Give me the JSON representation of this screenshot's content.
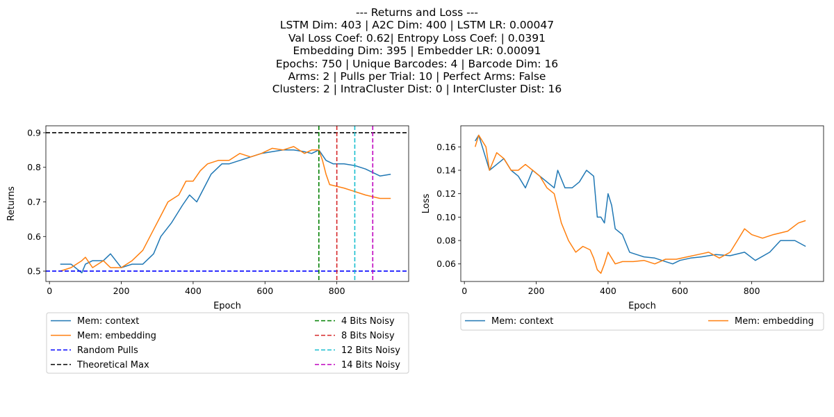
{
  "title_lines": [
    "--- Returns and Loss ---",
    "LSTM Dim: 403 | A2C Dim: 400 | LSTM LR: 0.00047",
    "Val Loss Coef: 0.62| Entropy Loss Coef: | 0.0391",
    "Embedding Dim: 395 | Embedder LR: 0.00091",
    "Epochs: 750 | Unique Barcodes: 4 | Barcode Dim: 16",
    "Arms: 2 | Pulls per Trial: 10 | Perfect Arms: False",
    "Clusters: 2 | IntraCluster Dist: 0 | InterCluster Dist: 16"
  ],
  "colors": {
    "context": "#1f77b4",
    "embedding": "#ff7f0e",
    "random": "#0000ff",
    "theoretical": "#000000",
    "bits4": "#008000",
    "bits8": "#d62728",
    "bits12": "#17becf",
    "bits14": "#bf00bf"
  },
  "chart_data": [
    {
      "type": "line",
      "xlabel": "Epoch",
      "ylabel": "Returns",
      "xlim": [
        -10,
        1000
      ],
      "ylim": [
        0.47,
        0.92
      ],
      "xticks": [
        0,
        200,
        400,
        600,
        800
      ],
      "yticks": [
        0.5,
        0.6,
        0.7,
        0.8,
        0.9
      ],
      "ytick_labels": [
        "0.5",
        "0.6",
        "0.7",
        "0.8",
        "0.9"
      ],
      "series": [
        {
          "name": "Mem: context",
          "style": "solid",
          "color_key": "context",
          "x": [
            30,
            60,
            90,
            100,
            120,
            150,
            170,
            200,
            230,
            260,
            290,
            310,
            340,
            370,
            390,
            410,
            430,
            450,
            480,
            500,
            530,
            560,
            590,
            620,
            650,
            680,
            710,
            730,
            750,
            770,
            790,
            820,
            850,
            880,
            920,
            950
          ],
          "y": [
            0.52,
            0.52,
            0.495,
            0.52,
            0.53,
            0.53,
            0.55,
            0.51,
            0.52,
            0.52,
            0.55,
            0.6,
            0.64,
            0.69,
            0.72,
            0.7,
            0.74,
            0.78,
            0.81,
            0.81,
            0.82,
            0.83,
            0.84,
            0.845,
            0.85,
            0.85,
            0.845,
            0.84,
            0.85,
            0.82,
            0.81,
            0.81,
            0.805,
            0.795,
            0.775,
            0.78
          ]
        },
        {
          "name": "Mem: embedding",
          "style": "solid",
          "color_key": "embedding",
          "x": [
            30,
            60,
            90,
            100,
            120,
            150,
            170,
            200,
            230,
            260,
            290,
            310,
            330,
            360,
            380,
            400,
            420,
            440,
            470,
            500,
            530,
            560,
            590,
            620,
            650,
            680,
            710,
            730,
            750,
            760,
            770,
            780,
            800,
            820,
            850,
            880,
            920,
            950
          ],
          "y": [
            0.5,
            0.51,
            0.53,
            0.54,
            0.51,
            0.53,
            0.51,
            0.51,
            0.53,
            0.56,
            0.62,
            0.66,
            0.7,
            0.72,
            0.76,
            0.76,
            0.79,
            0.81,
            0.82,
            0.82,
            0.84,
            0.83,
            0.84,
            0.855,
            0.85,
            0.86,
            0.84,
            0.85,
            0.85,
            0.82,
            0.78,
            0.75,
            0.745,
            0.74,
            0.73,
            0.72,
            0.71,
            0.71
          ]
        },
        {
          "name": "Random Pulls",
          "style": "dashed",
          "color_key": "random",
          "hline": 0.5
        },
        {
          "name": "Theoretical Max",
          "style": "dashed",
          "color_key": "theoretical",
          "hline": 0.9
        },
        {
          "name": "4 Bits Noisy",
          "style": "dashed",
          "color_key": "bits4",
          "vline": 750
        },
        {
          "name": "8 Bits Noisy",
          "style": "dashed",
          "color_key": "bits8",
          "vline": 800
        },
        {
          "name": "12 Bits Noisy",
          "style": "dashed",
          "color_key": "bits12",
          "vline": 850
        },
        {
          "name": "14 Bits Noisy",
          "style": "dashed",
          "color_key": "bits14",
          "vline": 900
        }
      ],
      "legend": {
        "placement": "below",
        "columns": 2,
        "entries": [
          "Mem: context",
          "Mem: embedding",
          "Random Pulls",
          "Theoretical Max",
          "4 Bits Noisy",
          "8 Bits Noisy",
          "12 Bits Noisy",
          "14 Bits Noisy"
        ]
      }
    },
    {
      "type": "line",
      "xlabel": "Epoch",
      "ylabel": "Loss",
      "xlim": [
        -10,
        1000
      ],
      "ylim": [
        0.045,
        0.178
      ],
      "xticks": [
        0,
        200,
        400,
        600,
        800
      ],
      "yticks": [
        0.06,
        0.08,
        0.1,
        0.12,
        0.14,
        0.16
      ],
      "ytick_labels": [
        "0.06",
        "0.08",
        "0.10",
        "0.12",
        "0.14",
        "0.16"
      ],
      "series": [
        {
          "name": "Mem: context",
          "style": "solid",
          "color_key": "context",
          "x": [
            30,
            40,
            50,
            60,
            70,
            90,
            110,
            130,
            150,
            170,
            190,
            210,
            230,
            250,
            260,
            280,
            300,
            320,
            340,
            360,
            370,
            380,
            390,
            400,
            410,
            420,
            440,
            460,
            480,
            500,
            530,
            560,
            580,
            600,
            630,
            660,
            700,
            740,
            780,
            810,
            850,
            880,
            920,
            950
          ],
          "y": [
            0.165,
            0.17,
            0.16,
            0.15,
            0.14,
            0.145,
            0.15,
            0.14,
            0.135,
            0.125,
            0.14,
            0.135,
            0.13,
            0.125,
            0.14,
            0.125,
            0.125,
            0.13,
            0.14,
            0.135,
            0.1,
            0.1,
            0.095,
            0.12,
            0.11,
            0.09,
            0.085,
            0.07,
            0.068,
            0.066,
            0.065,
            0.062,
            0.06,
            0.063,
            0.065,
            0.066,
            0.068,
            0.067,
            0.07,
            0.063,
            0.07,
            0.08,
            0.08,
            0.075
          ]
        },
        {
          "name": "Mem: embedding",
          "style": "solid",
          "color_key": "embedding",
          "x": [
            30,
            40,
            50,
            60,
            70,
            90,
            110,
            130,
            150,
            170,
            190,
            210,
            230,
            250,
            270,
            290,
            300,
            310,
            330,
            350,
            360,
            370,
            380,
            390,
            400,
            420,
            440,
            470,
            500,
            530,
            560,
            590,
            620,
            650,
            680,
            710,
            740,
            760,
            780,
            800,
            830,
            860,
            900,
            930,
            950
          ],
          "y": [
            0.16,
            0.17,
            0.165,
            0.16,
            0.14,
            0.155,
            0.15,
            0.14,
            0.14,
            0.145,
            0.14,
            0.135,
            0.125,
            0.12,
            0.095,
            0.08,
            0.075,
            0.07,
            0.075,
            0.072,
            0.065,
            0.055,
            0.052,
            0.06,
            0.07,
            0.06,
            0.062,
            0.062,
            0.063,
            0.06,
            0.064,
            0.064,
            0.066,
            0.068,
            0.07,
            0.065,
            0.07,
            0.08,
            0.09,
            0.085,
            0.082,
            0.085,
            0.088,
            0.095,
            0.097
          ]
        }
      ],
      "legend": {
        "placement": "below",
        "columns": 2,
        "entries": [
          "Mem: context",
          "Mem: embedding"
        ]
      }
    }
  ]
}
